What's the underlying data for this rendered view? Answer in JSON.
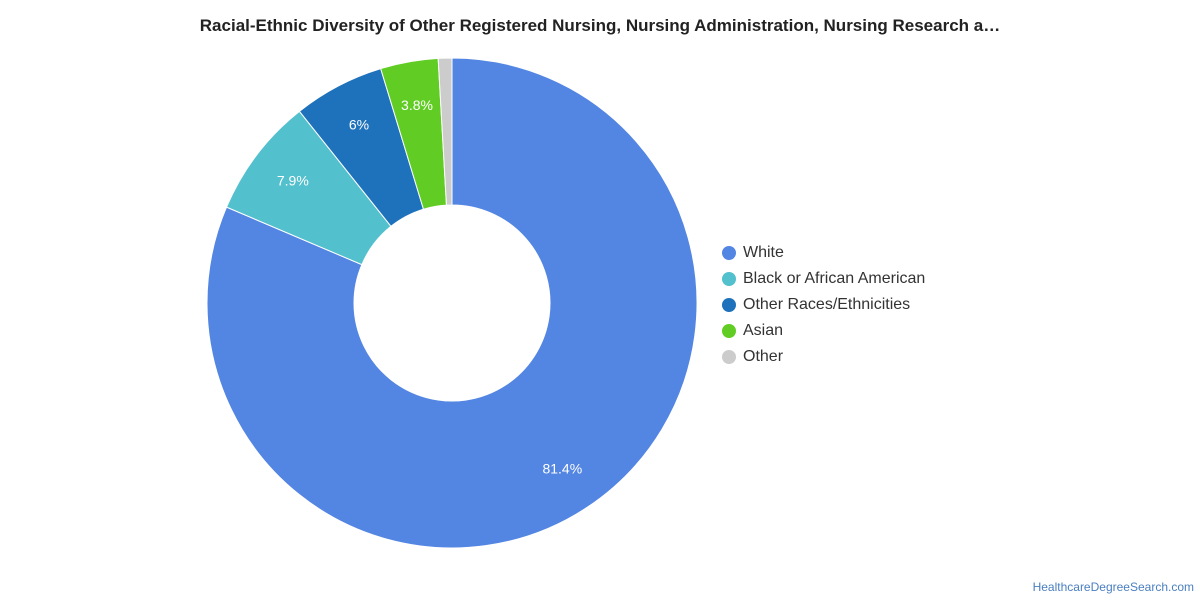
{
  "chart_data": {
    "type": "pie",
    "title": "Racial-Ethnic Diversity of Other Registered Nursing, Nursing Administration, Nursing Research a…",
    "categories": [
      "White",
      "Black or African American",
      "Other Races/Ethnicities",
      "Asian",
      "Other"
    ],
    "values": [
      81.4,
      7.9,
      6,
      3.8,
      0.9
    ],
    "labels": [
      "81.4%",
      "7.9%",
      "6%",
      "3.8%",
      ""
    ],
    "colors": [
      "#5385e2",
      "#52c0cd",
      "#1e71bb",
      "#61cc24",
      "#cccccc"
    ],
    "donut": true,
    "legend_position": "right"
  },
  "footer": {
    "source": "HealthcareDegreeSearch.com"
  }
}
